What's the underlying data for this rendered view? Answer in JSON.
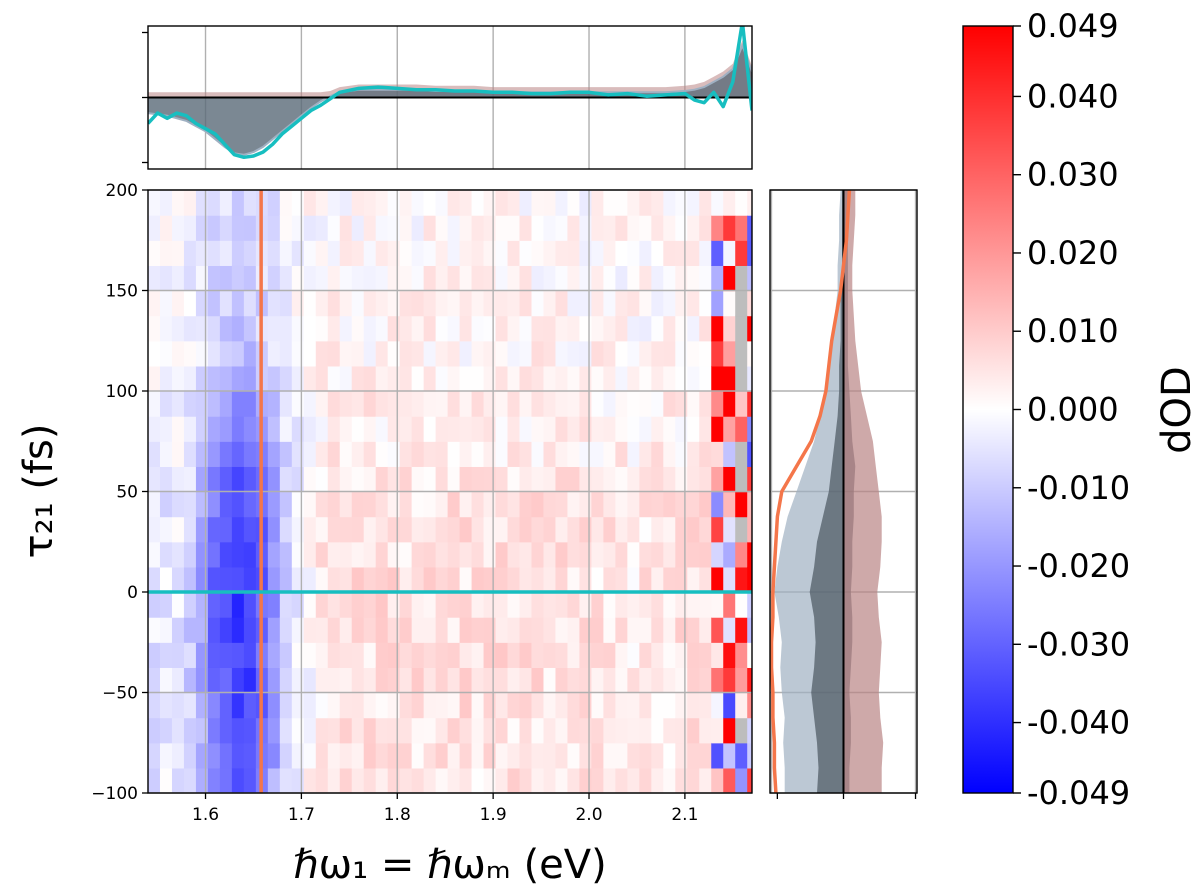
{
  "chart_data": [
    {
      "id": "heatmap",
      "type": "heatmap",
      "xlabel": "ℏω₁ = ℏωₘ (eV)",
      "ylabel": "τ₂₁ (fs)",
      "xlim": [
        1.54,
        2.17
      ],
      "ylim": [
        -100,
        200
      ],
      "xticks": [
        1.6,
        1.7,
        1.8,
        1.9,
        2.0,
        2.1
      ],
      "xtick_labels": [
        "1.6",
        "1.7",
        "1.8",
        "1.9",
        "2.0",
        "2.1"
      ],
      "yticks": [
        -100,
        -50,
        0,
        50,
        100,
        150,
        200
      ],
      "ytick_labels": [
        "−100",
        "−50",
        "0",
        "50",
        "100",
        "150",
        "200"
      ],
      "grid": true,
      "colormap": "bwr",
      "vmin": -0.049,
      "vmax": 0.049,
      "energy_bins": [
        1.54,
        2.17,
        0.0125
      ],
      "delay_bins": [
        -100,
        200,
        12.5
      ],
      "column_profile_dOD": [
        [
          1.54,
          -0.006
        ],
        [
          1.57,
          -0.004
        ],
        [
          1.59,
          -0.012
        ],
        [
          1.61,
          -0.03
        ],
        [
          1.63,
          -0.038
        ],
        [
          1.65,
          -0.037
        ],
        [
          1.67,
          -0.022
        ],
        [
          1.69,
          -0.006
        ],
        [
          1.72,
          0.004
        ],
        [
          1.76,
          0.006
        ],
        [
          1.85,
          0.006
        ],
        [
          1.95,
          0.006
        ],
        [
          2.05,
          0.004
        ],
        [
          2.12,
          0.006
        ],
        [
          2.14,
          0.018
        ],
        [
          2.16,
          0.04
        ]
      ],
      "delay_profile_scale": [
        [
          -100,
          0.8
        ],
        [
          -50,
          0.95
        ],
        [
          0,
          1.0
        ],
        [
          25,
          0.95
        ],
        [
          50,
          0.9
        ],
        [
          75,
          0.6
        ],
        [
          100,
          0.5
        ],
        [
          125,
          0.3
        ],
        [
          150,
          0.25
        ],
        [
          200,
          0.2
        ]
      ],
      "cut_lines": [
        {
          "orientation": "vertical",
          "x": 1.658,
          "color": "#f4764a"
        },
        {
          "orientation": "horizontal",
          "y": 0,
          "color": "#17bec0"
        }
      ]
    },
    {
      "id": "top-spectrum",
      "type": "area",
      "xlim": [
        1.54,
        2.17
      ],
      "ylim": [
        -0.055,
        0.055
      ],
      "x": [
        1.54,
        1.55,
        1.56,
        1.57,
        1.58,
        1.59,
        1.6,
        1.61,
        1.62,
        1.63,
        1.64,
        1.65,
        1.66,
        1.67,
        1.68,
        1.69,
        1.7,
        1.71,
        1.72,
        1.73,
        1.74,
        1.76,
        1.78,
        1.8,
        1.82,
        1.84,
        1.86,
        1.88,
        1.9,
        1.92,
        1.94,
        1.96,
        1.98,
        2.0,
        2.02,
        2.04,
        2.06,
        2.08,
        2.1,
        2.11,
        2.12,
        2.13,
        2.14,
        2.15,
        2.16,
        2.17
      ],
      "series": [
        {
          "color": "#17bec0",
          "values": [
            -0.02,
            -0.012,
            -0.016,
            -0.012,
            -0.014,
            -0.02,
            -0.024,
            -0.028,
            -0.036,
            -0.044,
            -0.046,
            -0.045,
            -0.042,
            -0.036,
            -0.028,
            -0.022,
            -0.016,
            -0.01,
            -0.006,
            -0.001,
            0.004,
            0.007,
            0.008,
            0.007,
            0.006,
            0.006,
            0.005,
            0.005,
            0.004,
            0.004,
            0.003,
            0.003,
            0.004,
            0.004,
            0.002,
            0.003,
            0.001,
            0.002,
            0.003,
            -0.002,
            -0.004,
            0.004,
            -0.007,
            0.012,
            0.058,
            -0.01
          ]
        },
        {
          "color": "#5a6a78",
          "values": [
            -0.012,
            -0.013,
            -0.014,
            -0.016,
            -0.018,
            -0.022,
            -0.026,
            -0.032,
            -0.038,
            -0.043,
            -0.044,
            -0.042,
            -0.038,
            -0.032,
            -0.026,
            -0.02,
            -0.014,
            -0.008,
            -0.003,
            0.001,
            0.004,
            0.006,
            0.006,
            0.006,
            0.006,
            0.005,
            0.005,
            0.005,
            0.004,
            0.004,
            0.004,
            0.004,
            0.004,
            0.004,
            0.004,
            0.004,
            0.004,
            0.004,
            0.005,
            0.006,
            0.008,
            0.012,
            0.016,
            0.022,
            0.04,
            0.02
          ]
        }
      ]
    },
    {
      "id": "side-delay",
      "type": "area",
      "ylim": [
        -100,
        200
      ],
      "xlim": [
        -0.05,
        0.05
      ],
      "delays": [
        -100,
        -87.5,
        -75,
        -62.5,
        -50,
        -37.5,
        -25,
        -12.5,
        0,
        12.5,
        25,
        37.5,
        50,
        62.5,
        75,
        87.5,
        100,
        112.5,
        125,
        137.5,
        150,
        162.5,
        175,
        187.5,
        200
      ],
      "bands": [
        {
          "name": "steelblue-band",
          "color": "#9fb0c2",
          "lower": [
            -0.04,
            -0.04,
            -0.041,
            -0.04,
            -0.042,
            -0.043,
            -0.042,
            -0.044,
            -0.047,
            -0.045,
            -0.042,
            -0.038,
            -0.032,
            -0.026,
            -0.02,
            -0.016,
            -0.012,
            -0.01,
            -0.008,
            -0.006,
            -0.004,
            -0.004,
            -0.003,
            -0.003,
            -0.002
          ],
          "upper": [
            0,
            0,
            0,
            0,
            0,
            0,
            0,
            0,
            0,
            0,
            0,
            0,
            0,
            0,
            0,
            0,
            0,
            0,
            0,
            0,
            0,
            0,
            0,
            0,
            0
          ]
        },
        {
          "name": "dark-band",
          "color": "#4a5560",
          "lower": [
            -0.018,
            -0.017,
            -0.018,
            -0.02,
            -0.022,
            -0.02,
            -0.019,
            -0.02,
            -0.023,
            -0.02,
            -0.018,
            -0.014,
            -0.01,
            -0.008,
            -0.006,
            -0.004,
            -0.003,
            -0.003,
            -0.002,
            -0.002,
            -0.002,
            -0.001,
            -0.001,
            -0.001,
            -0.001
          ],
          "upper": [
            0.004,
            0.004,
            0.005,
            0.005,
            0.004,
            0.005,
            0.006,
            0.006,
            0.005,
            0.006,
            0.006,
            0.007,
            0.007,
            0.008,
            0.006,
            0.005,
            0.004,
            0.003,
            0.003,
            0.003,
            0.003,
            0.003,
            0.003,
            0.004,
            0.004
          ]
        },
        {
          "name": "rosy-band",
          "color": "#b98585",
          "lower": [
            0,
            0,
            0,
            0,
            0,
            0,
            0,
            0,
            0,
            0,
            0,
            0,
            0,
            0,
            0,
            0,
            0,
            0,
            0,
            0,
            0,
            0,
            0,
            0,
            0
          ],
          "upper": [
            0.026,
            0.026,
            0.027,
            0.025,
            0.024,
            0.025,
            0.026,
            0.024,
            0.023,
            0.025,
            0.026,
            0.026,
            0.024,
            0.022,
            0.02,
            0.016,
            0.012,
            0.01,
            0.008,
            0.007,
            0.006,
            0.006,
            0.007,
            0.008,
            0.008
          ]
        }
      ],
      "series": [
        {
          "color": "#f4764a",
          "values": [
            -0.046,
            -0.047,
            -0.047,
            -0.048,
            -0.048,
            -0.049,
            -0.049,
            -0.048,
            -0.048,
            -0.047,
            -0.046,
            -0.045,
            -0.042,
            -0.032,
            -0.022,
            -0.016,
            -0.012,
            -0.01,
            -0.008,
            -0.005,
            -0.002,
            0,
            0.002,
            0.003,
            0.004
          ]
        }
      ]
    },
    {
      "id": "colorbar",
      "type": "colorbar",
      "label": "dOD",
      "range": [
        -0.049,
        0.049
      ],
      "ticks": [
        0.049,
        0.04,
        0.03,
        0.02,
        0.01,
        0.0,
        -0.01,
        -0.02,
        -0.03,
        -0.04,
        -0.049
      ],
      "tick_labels": [
        "0.049",
        "0.040",
        "0.030",
        "0.020",
        "0.010",
        "0.000",
        "-0.010",
        "-0.020",
        "-0.030",
        "-0.040",
        "-0.049"
      ]
    }
  ]
}
